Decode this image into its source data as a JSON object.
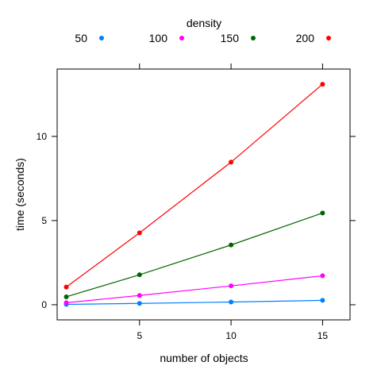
{
  "chart_data": {
    "type": "line",
    "legend_title": "density",
    "legend_position": "top",
    "xlabel": "number of objects",
    "ylabel": "time (seconds)",
    "xlim": [
      0.5,
      16.5
    ],
    "ylim": [
      -0.9,
      14.0
    ],
    "x_ticks": [
      5,
      10,
      15
    ],
    "y_ticks": [
      0,
      5,
      10
    ],
    "grid": false,
    "x": [
      1,
      5,
      10,
      15
    ],
    "series": [
      {
        "name": "50",
        "color": "#0080ff",
        "values": [
          0.02,
          0.08,
          0.16,
          0.26
        ]
      },
      {
        "name": "100",
        "color": "#ff00ff",
        "values": [
          0.12,
          0.55,
          1.12,
          1.72
        ]
      },
      {
        "name": "150",
        "color": "#006400",
        "values": [
          0.47,
          1.78,
          3.55,
          5.45
        ]
      },
      {
        "name": "200",
        "color": "#ff0000",
        "values": [
          1.05,
          4.27,
          8.47,
          13.1
        ]
      }
    ]
  }
}
